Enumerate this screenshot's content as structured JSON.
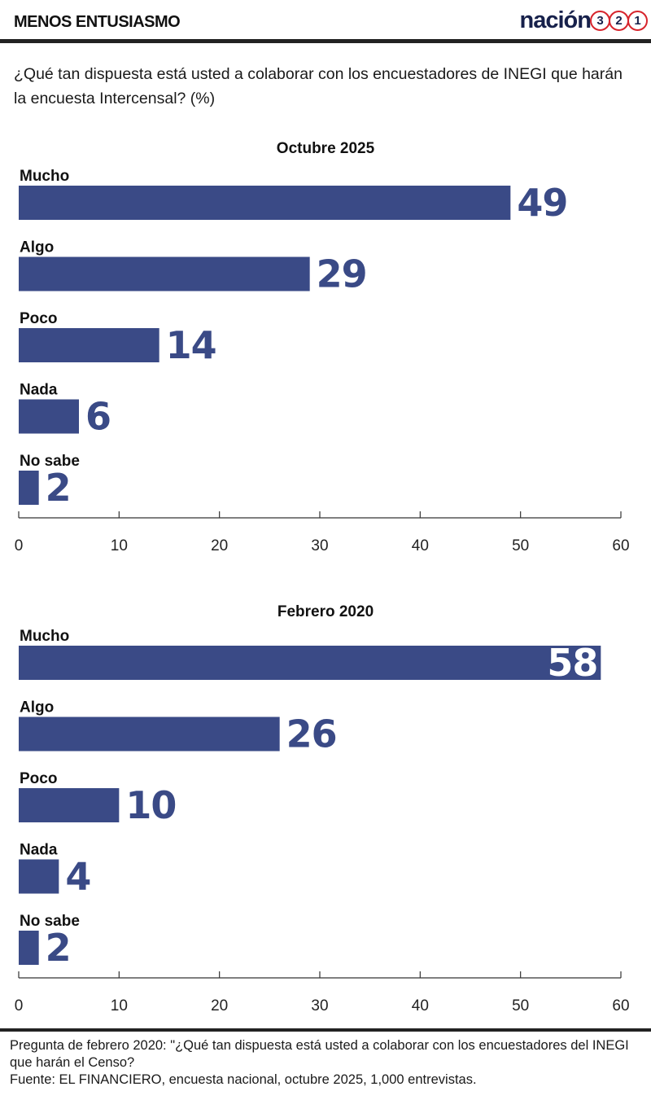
{
  "header": {
    "title": "MENOS ENTUSIASMO"
  },
  "brand": {
    "word": "nación",
    "digits": [
      "3",
      "2",
      "1"
    ]
  },
  "question": "¿Qué tan dispuesta está usted a colaborar con los encuestadores de INEGI que harán la encuesta Intercensal? (%)",
  "colors": {
    "bar": "#3a4a86",
    "value_text": "#3a4a86",
    "brand_navy": "#17214b",
    "brand_red": "#d7242c"
  },
  "chart_data": [
    {
      "type": "bar",
      "orientation": "horizontal",
      "title": "Octubre 2025",
      "categories": [
        "Mucho",
        "Algo",
        "Poco",
        "Nada",
        "No sabe"
      ],
      "values": [
        49,
        29,
        14,
        6,
        2
      ],
      "xlim": [
        0,
        60
      ],
      "xticks": [
        "0",
        "10",
        "20",
        "30",
        "40",
        "50",
        "60"
      ],
      "grid": false
    },
    {
      "type": "bar",
      "orientation": "horizontal",
      "title": "Febrero 2020",
      "categories": [
        "Mucho",
        "Algo",
        "Poco",
        "Nada",
        "No sabe"
      ],
      "values": [
        58,
        26,
        10,
        4,
        2
      ],
      "xlim": [
        0,
        60
      ],
      "xticks": [
        "0",
        "10",
        "20",
        "30",
        "40",
        "50",
        "60"
      ],
      "grid": false
    }
  ],
  "footnote": {
    "line1": "Pregunta de febrero 2020: \"¿Qué tan dispuesta está usted a colaborar con los encuestadores del INEGI que harán el Censo?",
    "line2": "Fuente: EL FINANCIERO, encuesta nacional, octubre 2025, 1,000 entrevistas."
  }
}
